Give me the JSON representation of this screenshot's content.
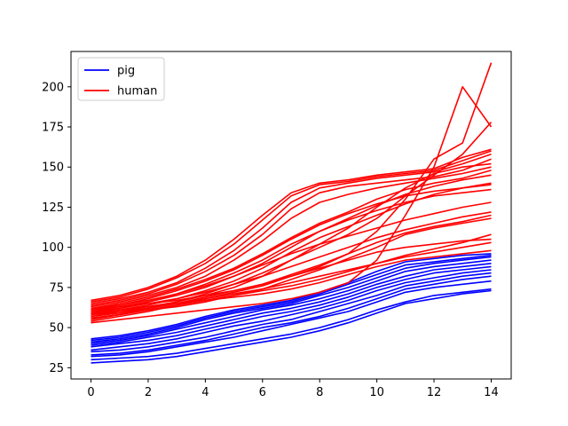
{
  "chart_data": {
    "type": "line",
    "title": "",
    "xlabel": "",
    "ylabel": "",
    "xlim": [
      -0.7,
      14.7
    ],
    "ylim": [
      18,
      222
    ],
    "x_ticks": [
      0,
      2,
      4,
      6,
      8,
      10,
      12,
      14
    ],
    "y_ticks": [
      25,
      50,
      75,
      100,
      125,
      150,
      175,
      200
    ],
    "grid": false,
    "legend_position": "top-left",
    "x": [
      0,
      1,
      2,
      3,
      4,
      5,
      6,
      7,
      8,
      9,
      10,
      11,
      12,
      13,
      14
    ],
    "series": [
      {
        "name": "pig",
        "color": "#0000ff",
        "lines": [
          [
            28,
            29,
            30,
            32,
            35,
            38,
            41,
            44,
            48,
            53,
            59,
            65,
            68,
            71,
            73
          ],
          [
            30,
            31,
            32,
            34,
            37,
            40,
            43,
            46,
            50,
            55,
            61,
            66,
            70,
            72,
            74
          ],
          [
            32,
            33,
            35,
            38,
            41,
            44,
            48,
            52,
            56,
            60,
            66,
            72,
            75,
            77,
            79
          ],
          [
            33,
            34,
            36,
            39,
            42,
            46,
            50,
            53,
            57,
            62,
            68,
            74,
            77,
            80,
            82
          ],
          [
            35,
            36,
            38,
            41,
            44,
            48,
            52,
            55,
            60,
            65,
            70,
            76,
            79,
            82,
            84
          ],
          [
            36,
            38,
            40,
            43,
            47,
            51,
            54,
            58,
            62,
            67,
            73,
            78,
            81,
            84,
            86
          ],
          [
            38,
            40,
            42,
            45,
            49,
            53,
            57,
            60,
            64,
            69,
            75,
            80,
            84,
            86,
            88
          ],
          [
            39,
            41,
            44,
            47,
            51,
            55,
            59,
            62,
            66,
            71,
            77,
            82,
            86,
            88,
            90
          ],
          [
            40,
            42,
            45,
            49,
            53,
            57,
            61,
            64,
            68,
            73,
            79,
            85,
            88,
            90,
            92
          ],
          [
            41,
            43,
            46,
            50,
            55,
            59,
            62,
            65,
            70,
            75,
            81,
            87,
            90,
            92,
            94
          ],
          [
            42,
            44,
            47,
            51,
            56,
            60,
            63,
            66,
            71,
            77,
            83,
            89,
            91,
            93,
            95
          ],
          [
            43,
            45,
            48,
            52,
            57,
            61,
            64,
            67,
            72,
            78,
            85,
            91,
            93,
            95,
            96
          ]
        ]
      },
      {
        "name": "human",
        "color": "#ff0000",
        "lines": [
          [
            53,
            55,
            57,
            59,
            61,
            63,
            65,
            68,
            72,
            78,
            92,
            120,
            150,
            200,
            175
          ],
          [
            54,
            57,
            60,
            64,
            68,
            72,
            76,
            82,
            88,
            96,
            110,
            130,
            155,
            165,
            215
          ],
          [
            55,
            58,
            62,
            66,
            71,
            77,
            84,
            92,
            100,
            108,
            118,
            132,
            145,
            158,
            178
          ],
          [
            56,
            58,
            61,
            63,
            66,
            70,
            74,
            80,
            86,
            93,
            100,
            108,
            112,
            115,
            118
          ],
          [
            57,
            60,
            63,
            66,
            70,
            75,
            82,
            92,
            102,
            112,
            125,
            137,
            146,
            150,
            152
          ],
          [
            58,
            61,
            64,
            68,
            73,
            79,
            87,
            97,
            106,
            113,
            120,
            127,
            133,
            137,
            140
          ],
          [
            59,
            61,
            63,
            65,
            67,
            69,
            71,
            74,
            78,
            83,
            88,
            92,
            94,
            96,
            98
          ],
          [
            60,
            63,
            66,
            70,
            75,
            82,
            90,
            100,
            110,
            118,
            126,
            133,
            138,
            142,
            145
          ],
          [
            61,
            63,
            65,
            67,
            70,
            73,
            77,
            82,
            87,
            92,
            97,
            100,
            102,
            104,
            105
          ],
          [
            62,
            65,
            69,
            74,
            80,
            87,
            96,
            106,
            115,
            122,
            130,
            136,
            140,
            143,
            148
          ],
          [
            63,
            66,
            70,
            75,
            82,
            92,
            104,
            118,
            128,
            133,
            137,
            140,
            143,
            146,
            150
          ],
          [
            64,
            67,
            71,
            77,
            85,
            95,
            108,
            124,
            134,
            138,
            140,
            142,
            144,
            148,
            155
          ],
          [
            65,
            68,
            72,
            78,
            87,
            98,
            112,
            128,
            137,
            140,
            143,
            145,
            147,
            152,
            158
          ],
          [
            66,
            69,
            74,
            81,
            90,
            102,
            117,
            132,
            139,
            141,
            144,
            146,
            148,
            154,
            160
          ],
          [
            67,
            70,
            75,
            82,
            92,
            105,
            120,
            134,
            140,
            142,
            145,
            147,
            149,
            156,
            161
          ],
          [
            58,
            60,
            62,
            65,
            68,
            71,
            74,
            78,
            82,
            86,
            90,
            94,
            97,
            100,
            103
          ],
          [
            60,
            62,
            65,
            68,
            72,
            77,
            82,
            88,
            94,
            100,
            106,
            111,
            115,
            119,
            122
          ],
          [
            62,
            64,
            67,
            71,
            76,
            82,
            89,
            96,
            102,
            107,
            112,
            117,
            121,
            125,
            128
          ],
          [
            59,
            62,
            66,
            71,
            77,
            84,
            92,
            102,
            110,
            117,
            123,
            128,
            132,
            134,
            136
          ],
          [
            61,
            64,
            68,
            73,
            79,
            86,
            95,
            105,
            114,
            121,
            127,
            132,
            135,
            137,
            139
          ],
          [
            56,
            58,
            61,
            64,
            67,
            70,
            73,
            76,
            80,
            85,
            90,
            95,
            99,
            103,
            108
          ],
          [
            57,
            59,
            62,
            65,
            69,
            73,
            77,
            83,
            89,
            96,
            103,
            109,
            113,
            116,
            120
          ]
        ]
      }
    ]
  }
}
